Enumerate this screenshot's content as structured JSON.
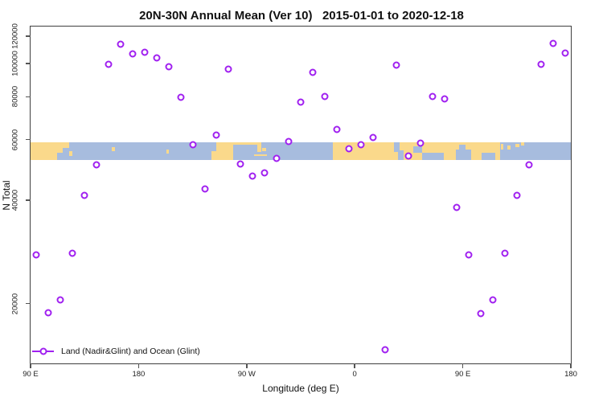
{
  "title": "20N-30N Annual Mean (Ver 10)   2015-01-01 to 2020-12-18",
  "colors": {
    "point": "#A020F0",
    "land": "#FAD98B",
    "ocean": "#A7BCDE",
    "axis": "#3f3f3f"
  },
  "legend": {
    "label": "Land (Nadir&Glint) and Ocean (Glint)"
  },
  "chart_data": {
    "type": "scatter",
    "title": "20N-30N Annual Mean (Ver 10)   2015-01-01 to 2020-12-18",
    "xlabel": "Longitude (deg E)",
    "ylabel": "N Total",
    "y_scale": "log",
    "xlim": [
      90,
      540
    ],
    "ylim": [
      13400,
      128000
    ],
    "grid": false,
    "legend_position": "bottom-left",
    "x_ticks": [
      {
        "lon": 90,
        "label": "90 E"
      },
      {
        "lon": 180,
        "label": "180"
      },
      {
        "lon": 270,
        "label": "90 W"
      },
      {
        "lon": 360,
        "label": "0"
      },
      {
        "lon": 450,
        "label": "90 E"
      },
      {
        "lon": 540,
        "label": "180"
      }
    ],
    "y_ticks": [
      20000,
      40000,
      60000,
      80000,
      100000,
      120000
    ],
    "series": [
      {
        "name": "Land (Nadir&Glint) and Ocean (Glint)",
        "marker": "open-circle",
        "color": "#A020F0",
        "points": [
          {
            "lon": 95,
            "n": 27800
          },
          {
            "lon": 105,
            "n": 18800
          },
          {
            "lon": 115,
            "n": 20500
          },
          {
            "lon": 125,
            "n": 28100
          },
          {
            "lon": 135,
            "n": 41200
          },
          {
            "lon": 145,
            "n": 50600
          },
          {
            "lon": 155,
            "n": 99500
          },
          {
            "lon": 165,
            "n": 113700
          },
          {
            "lon": 175,
            "n": 106400
          },
          {
            "lon": 185,
            "n": 107900
          },
          {
            "lon": 195,
            "n": 103600
          },
          {
            "lon": 205,
            "n": 97800
          },
          {
            "lon": 215,
            "n": 79600
          },
          {
            "lon": 225,
            "n": 57900
          },
          {
            "lon": 235,
            "n": 43200
          },
          {
            "lon": 245,
            "n": 61700
          },
          {
            "lon": 255,
            "n": 96400
          },
          {
            "lon": 265,
            "n": 51000
          },
          {
            "lon": 275,
            "n": 46900
          },
          {
            "lon": 285,
            "n": 47900
          },
          {
            "lon": 295,
            "n": 52900
          },
          {
            "lon": 305,
            "n": 59200
          },
          {
            "lon": 315,
            "n": 77100
          },
          {
            "lon": 325,
            "n": 94000
          },
          {
            "lon": 335,
            "n": 80000
          },
          {
            "lon": 345,
            "n": 64400
          },
          {
            "lon": 355,
            "n": 56300
          },
          {
            "lon": 365,
            "n": 58100
          },
          {
            "lon": 375,
            "n": 61000
          },
          {
            "lon": 385,
            "n": 14700
          },
          {
            "lon": 395,
            "n": 98700
          },
          {
            "lon": 405,
            "n": 53800
          },
          {
            "lon": 415,
            "n": 58700
          },
          {
            "lon": 425,
            "n": 80000
          },
          {
            "lon": 435,
            "n": 78900
          },
          {
            "lon": 445,
            "n": 38100
          },
          {
            "lon": 455,
            "n": 27800
          },
          {
            "lon": 465,
            "n": 18700
          },
          {
            "lon": 475,
            "n": 20500
          },
          {
            "lon": 485,
            "n": 28100
          },
          {
            "lon": 495,
            "n": 41200
          },
          {
            "lon": 505,
            "n": 50600
          },
          {
            "lon": 515,
            "n": 99500
          },
          {
            "lon": 525,
            "n": 114300
          },
          {
            "lon": 535,
            "n": 107000
          }
        ]
      }
    ],
    "map_band": {
      "description": "20N-30N latitude strip of world map drawn across plot",
      "value_top": 59000,
      "value_bottom": 52400,
      "land_segments": [
        [
          90,
          122,
          0,
          1
        ],
        [
          122,
          125,
          0.5,
          0.78
        ],
        [
          157.5,
          160.5,
          0.28,
          0.5
        ],
        [
          203,
          205.5,
          0.42,
          0.65
        ],
        [
          241,
          259,
          0,
          1
        ],
        [
          259,
          281,
          0,
          0.16
        ],
        [
          279,
          282.5,
          0,
          0.55
        ],
        [
          283,
          286,
          0.33,
          0.5
        ],
        [
          276,
          287,
          0.68,
          0.8
        ],
        [
          342,
          481,
          0,
          1
        ],
        [
          481.5,
          484,
          0.12,
          0.42
        ],
        [
          487,
          490,
          0.2,
          0.42
        ],
        [
          494,
          497,
          0.08,
          0.28
        ],
        [
          498.5,
          501.5,
          0,
          0.18
        ]
      ],
      "water_insets": [
        [
          112,
          122,
          0.6,
          1
        ],
        [
          117,
          122,
          0.32,
          0.6
        ],
        [
          241,
          245,
          0,
          0.5
        ],
        [
          393,
          397.5,
          0,
          0.55
        ],
        [
          396,
          400.5,
          0.45,
          1
        ],
        [
          409,
          416,
          0.22,
          0.62
        ],
        [
          416,
          434,
          0.62,
          1
        ],
        [
          444,
          457,
          0.42,
          1
        ],
        [
          447,
          452,
          0.15,
          1
        ],
        [
          466,
          477,
          0.6,
          1
        ]
      ]
    }
  }
}
